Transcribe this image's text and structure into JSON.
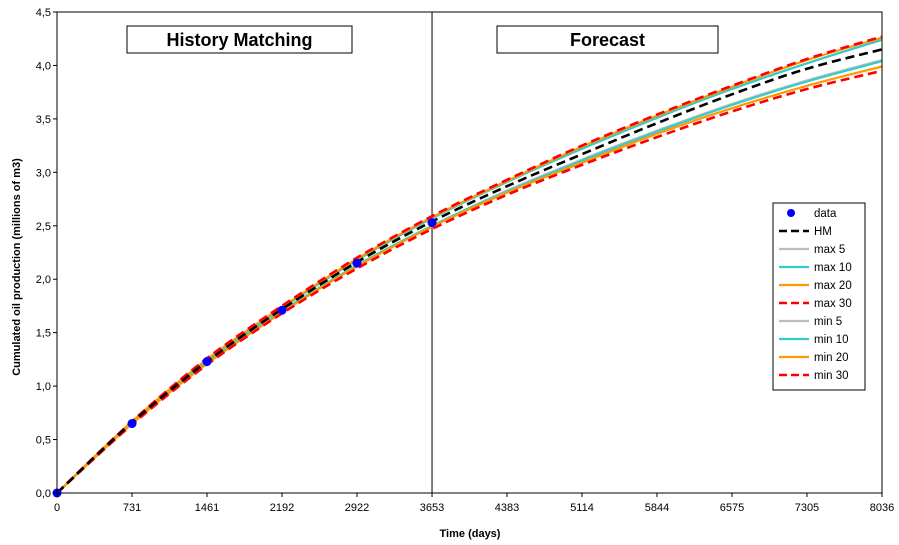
{
  "chart_data": {
    "type": "line",
    "xlabel": "Time (days)",
    "ylabel": "Cumulated oil production (millions of m3)",
    "xlim": [
      0,
      8036
    ],
    "ylim": [
      0,
      4.5
    ],
    "x_ticks": [
      0,
      731,
      1461,
      2192,
      2922,
      3653,
      4383,
      5114,
      5844,
      6575,
      7305,
      8036
    ],
    "x_tick_labels": [
      "0",
      "731",
      "1461",
      "2192",
      "2922",
      "3653",
      "4383",
      "5114",
      "5844",
      "6575",
      "7305",
      "8036"
    ],
    "y_ticks": [
      0,
      0.5,
      1.0,
      1.5,
      2.0,
      2.5,
      3.0,
      3.5,
      4.0,
      4.5
    ],
    "y_tick_labels": [
      "0,0",
      "0,5",
      "1,0",
      "1,5",
      "2,0",
      "2,5",
      "3,0",
      "3,5",
      "4,0",
      "4,5"
    ],
    "grid": false,
    "legend_position": "right",
    "annotations": {
      "history_label": "History Matching",
      "forecast_label": "Forecast",
      "divider_x": 3653
    },
    "x": [
      0,
      731,
      1461,
      2192,
      2922,
      3653,
      4383,
      5114,
      5844,
      6575,
      7305,
      8036
    ],
    "series": [
      {
        "name": "data",
        "style": "markers",
        "color": "#0000ff",
        "points": [
          [
            0,
            0.0
          ],
          [
            731,
            0.65
          ],
          [
            1461,
            1.23
          ],
          [
            2192,
            1.71
          ],
          [
            2922,
            2.15
          ],
          [
            3653,
            2.53
          ]
        ]
      },
      {
        "name": "HM",
        "style": "dashed",
        "color": "#000000",
        "values": [
          0.0,
          0.66,
          1.23,
          1.72,
          2.16,
          2.54,
          2.87,
          3.17,
          3.46,
          3.73,
          3.97,
          4.15
        ]
      },
      {
        "name": "max 5",
        "style": "solid",
        "color": "#bdbdbd",
        "values": [
          0.0,
          0.66,
          1.24,
          1.73,
          2.18,
          2.57,
          2.91,
          3.22,
          3.51,
          3.78,
          4.02,
          4.24
        ]
      },
      {
        "name": "max 10",
        "style": "solid",
        "color": "#33cccc",
        "values": [
          0.0,
          0.66,
          1.24,
          1.73,
          2.18,
          2.57,
          2.91,
          3.22,
          3.51,
          3.78,
          4.02,
          4.24
        ]
      },
      {
        "name": "max 20",
        "style": "solid",
        "color": "#ff9900",
        "values": [
          0.0,
          0.67,
          1.25,
          1.74,
          2.19,
          2.58,
          2.92,
          3.24,
          3.53,
          3.8,
          4.05,
          4.26
        ]
      },
      {
        "name": "max 30",
        "style": "dashed",
        "color": "#ff0000",
        "values": [
          0.0,
          0.67,
          1.26,
          1.75,
          2.2,
          2.59,
          2.93,
          3.25,
          3.54,
          3.81,
          4.06,
          4.27
        ]
      },
      {
        "name": "min 5",
        "style": "solid",
        "color": "#bdbdbd",
        "values": [
          0.0,
          0.65,
          1.22,
          1.7,
          2.13,
          2.5,
          2.83,
          3.12,
          3.39,
          3.64,
          3.86,
          4.05
        ]
      },
      {
        "name": "min 10",
        "style": "solid",
        "color": "#33cccc",
        "values": [
          0.0,
          0.65,
          1.22,
          1.7,
          2.13,
          2.5,
          2.82,
          3.11,
          3.38,
          3.63,
          3.85,
          4.04
        ]
      },
      {
        "name": "min 20",
        "style": "solid",
        "color": "#ff9900",
        "values": [
          0.0,
          0.65,
          1.21,
          1.69,
          2.12,
          2.49,
          2.81,
          3.09,
          3.36,
          3.6,
          3.81,
          3.99
        ]
      },
      {
        "name": "min 30",
        "style": "dashed",
        "color": "#ff0000",
        "values": [
          0.0,
          0.64,
          1.2,
          1.68,
          2.1,
          2.47,
          2.79,
          3.07,
          3.33,
          3.57,
          3.78,
          3.95
        ]
      }
    ]
  }
}
